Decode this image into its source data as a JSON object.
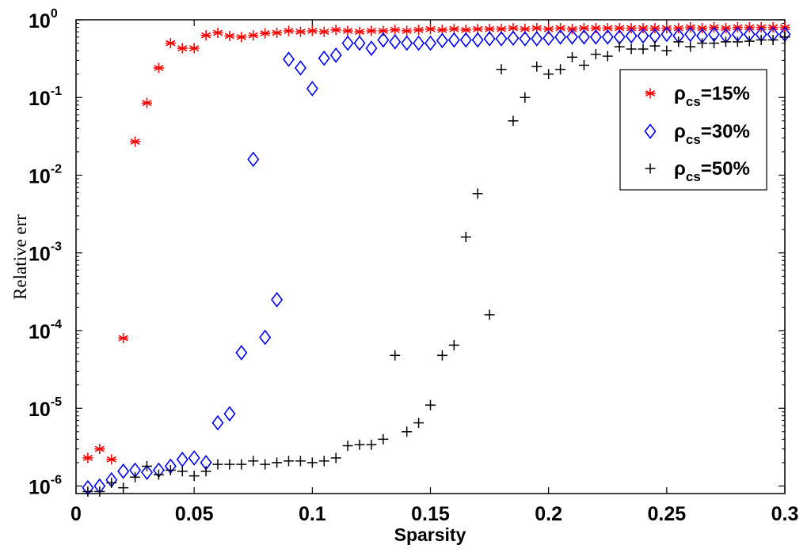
{
  "chart_data": {
    "type": "scatter",
    "title": "",
    "xlabel": "Sparsity",
    "ylabel": "Relative err",
    "xlim": [
      0,
      0.3
    ],
    "ylim": [
      8e-07,
      1
    ],
    "yscale": "log",
    "grid": false,
    "legend_position": "top-right",
    "x_ticks": [
      "0",
      "0.05",
      "0.1",
      "0.15",
      "0.2",
      "0.25",
      "0.3"
    ],
    "x_tick_values": [
      0,
      0.05,
      0.1,
      0.15,
      0.2,
      0.25,
      0.3
    ],
    "y_ticks": [
      {
        "value": 1e-06,
        "base": "10",
        "exp": "-6"
      },
      {
        "value": 1e-05,
        "base": "10",
        "exp": "-5"
      },
      {
        "value": 0.0001,
        "base": "10",
        "exp": "-4"
      },
      {
        "value": 0.001,
        "base": "10",
        "exp": "-3"
      },
      {
        "value": 0.01,
        "base": "10",
        "exp": "-2"
      },
      {
        "value": 0.1,
        "base": "10",
        "exp": "-1"
      },
      {
        "value": 1,
        "base": "10",
        "exp": "0"
      }
    ],
    "series": [
      {
        "name": "ρcs=15%",
        "label_main": "ρ",
        "label_sub": "cs",
        "label_tail": "=15%",
        "marker": "asterisk",
        "color": "#ff0000",
        "x": [
          0.005,
          0.01,
          0.015,
          0.02,
          0.025,
          0.03,
          0.035,
          0.04,
          0.045,
          0.05,
          0.055,
          0.06,
          0.065,
          0.07,
          0.075,
          0.08,
          0.085,
          0.09,
          0.095,
          0.1,
          0.105,
          0.11,
          0.115,
          0.12,
          0.125,
          0.13,
          0.135,
          0.14,
          0.145,
          0.15,
          0.155,
          0.16,
          0.165,
          0.17,
          0.175,
          0.18,
          0.185,
          0.19,
          0.195,
          0.2,
          0.205,
          0.21,
          0.215,
          0.22,
          0.225,
          0.23,
          0.235,
          0.24,
          0.245,
          0.25,
          0.255,
          0.26,
          0.265,
          0.27,
          0.275,
          0.28,
          0.285,
          0.29,
          0.295,
          0.3
        ],
        "y": [
          2.3e-06,
          3e-06,
          2.2e-06,
          8e-05,
          0.027,
          0.085,
          0.24,
          0.5,
          0.43,
          0.43,
          0.63,
          0.68,
          0.62,
          0.6,
          0.63,
          0.67,
          0.68,
          0.72,
          0.7,
          0.72,
          0.7,
          0.74,
          0.72,
          0.7,
          0.72,
          0.72,
          0.74,
          0.72,
          0.74,
          0.76,
          0.74,
          0.76,
          0.74,
          0.76,
          0.76,
          0.76,
          0.78,
          0.76,
          0.78,
          0.76,
          0.78,
          0.76,
          0.78,
          0.78,
          0.78,
          0.78,
          0.78,
          0.78,
          0.78,
          0.78,
          0.78,
          0.8,
          0.78,
          0.8,
          0.78,
          0.8,
          0.8,
          0.8,
          0.8,
          0.8
        ]
      },
      {
        "name": "ρcs=30%",
        "label_main": "ρ",
        "label_sub": "cs",
        "label_tail": "=30%",
        "marker": "diamond",
        "color": "#0000ff",
        "x": [
          0.005,
          0.01,
          0.015,
          0.02,
          0.025,
          0.03,
          0.035,
          0.04,
          0.045,
          0.05,
          0.055,
          0.06,
          0.065,
          0.07,
          0.075,
          0.08,
          0.085,
          0.09,
          0.095,
          0.1,
          0.105,
          0.11,
          0.115,
          0.12,
          0.125,
          0.13,
          0.135,
          0.14,
          0.145,
          0.15,
          0.155,
          0.16,
          0.165,
          0.17,
          0.175,
          0.18,
          0.185,
          0.19,
          0.195,
          0.2,
          0.205,
          0.21,
          0.215,
          0.22,
          0.225,
          0.23,
          0.235,
          0.24,
          0.245,
          0.25,
          0.255,
          0.26,
          0.265,
          0.27,
          0.275,
          0.28,
          0.285,
          0.29,
          0.295,
          0.3
        ],
        "y": [
          9.5e-07,
          1e-06,
          1.2e-06,
          1.55e-06,
          1.6e-06,
          1.5e-06,
          1.6e-06,
          1.8e-06,
          2.2e-06,
          2.3e-06,
          2e-06,
          6.5e-06,
          8.5e-06,
          5.2e-05,
          0.016,
          8.2e-05,
          0.00025,
          0.31,
          0.24,
          0.13,
          0.32,
          0.35,
          0.5,
          0.5,
          0.43,
          0.55,
          0.52,
          0.5,
          0.5,
          0.5,
          0.54,
          0.55,
          0.55,
          0.55,
          0.57,
          0.57,
          0.58,
          0.57,
          0.57,
          0.58,
          0.6,
          0.6,
          0.6,
          0.6,
          0.6,
          0.6,
          0.62,
          0.62,
          0.62,
          0.65,
          0.62,
          0.65,
          0.62,
          0.65,
          0.62,
          0.65,
          0.65,
          0.65,
          0.65,
          0.65
        ]
      },
      {
        "name": "ρcs=50%",
        "label_main": "ρ",
        "label_sub": "cs",
        "label_tail": "=50%",
        "marker": "plus",
        "color": "#000000",
        "x": [
          0.005,
          0.01,
          0.015,
          0.02,
          0.025,
          0.03,
          0.035,
          0.04,
          0.045,
          0.05,
          0.055,
          0.06,
          0.065,
          0.07,
          0.075,
          0.08,
          0.085,
          0.09,
          0.095,
          0.1,
          0.105,
          0.11,
          0.115,
          0.12,
          0.125,
          0.13,
          0.135,
          0.14,
          0.145,
          0.15,
          0.155,
          0.16,
          0.165,
          0.17,
          0.175,
          0.18,
          0.185,
          0.19,
          0.195,
          0.2,
          0.205,
          0.21,
          0.215,
          0.22,
          0.225,
          0.23,
          0.235,
          0.24,
          0.245,
          0.25,
          0.255,
          0.26,
          0.265,
          0.27,
          0.275,
          0.28,
          0.285,
          0.29,
          0.295,
          0.3
        ],
        "y": [
          8.5e-07,
          8.5e-07,
          1.1e-06,
          9.5e-07,
          1.3e-06,
          1.8e-06,
          1.4e-06,
          1.6e-06,
          1.55e-06,
          1.35e-06,
          1.55e-06,
          1.9e-06,
          1.9e-06,
          1.9e-06,
          2.1e-06,
          1.9e-06,
          2e-06,
          2.1e-06,
          2.1e-06,
          2e-06,
          2.1e-06,
          2.3e-06,
          3.3e-06,
          3.4e-06,
          3.4e-06,
          4e-06,
          4.8e-05,
          5e-06,
          6.5e-06,
          1.1e-05,
          4.8e-05,
          6.5e-05,
          0.0016,
          0.0058,
          0.00016,
          0.23,
          0.05,
          0.1,
          0.25,
          0.2,
          0.23,
          0.33,
          0.26,
          0.36,
          0.34,
          0.45,
          0.42,
          0.42,
          0.46,
          0.4,
          0.52,
          0.45,
          0.5,
          0.5,
          0.52,
          0.52,
          0.53,
          0.55,
          0.55,
          0.6
        ]
      }
    ]
  }
}
